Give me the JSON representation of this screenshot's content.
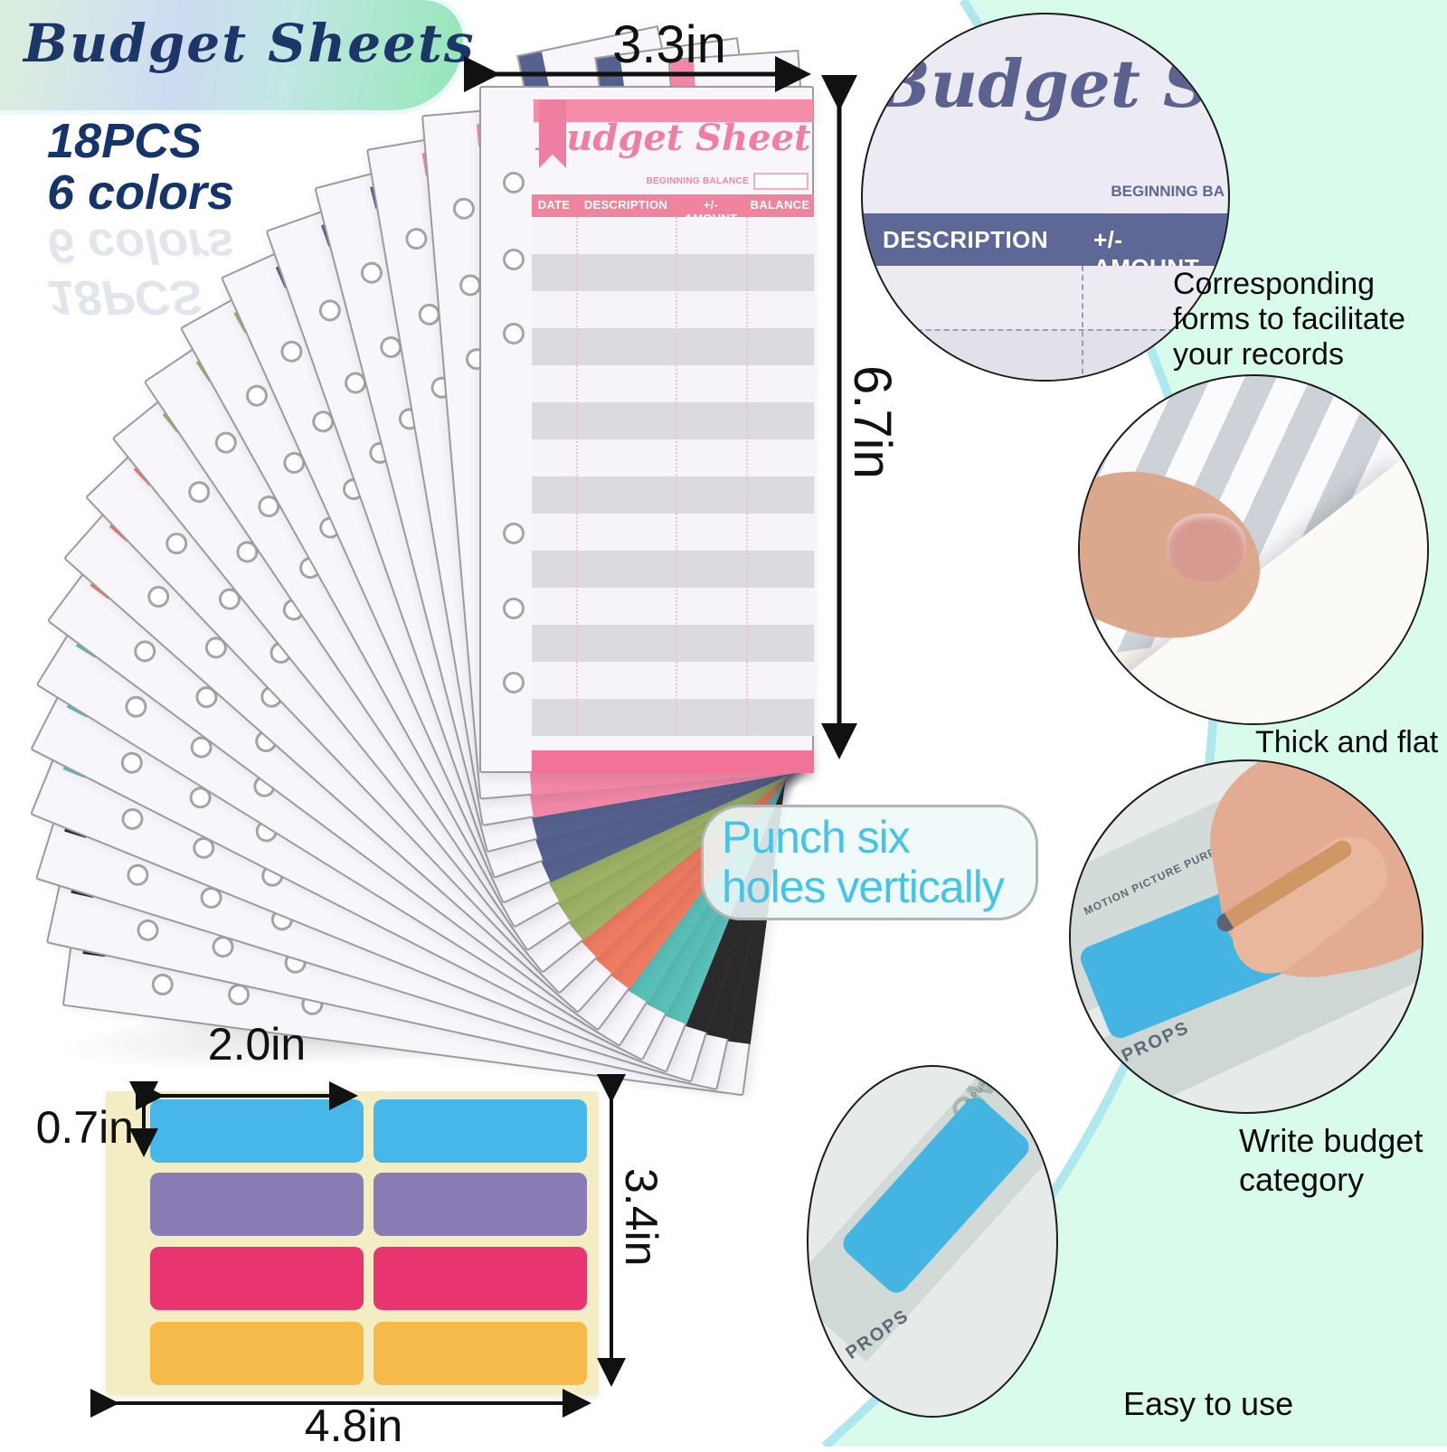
{
  "banner": {
    "title": "Budget Sheets"
  },
  "subtitle": {
    "count": "18PCS",
    "colors_label": "6 colors"
  },
  "front_sheet": {
    "title": "Budget Sheet",
    "beginning_balance": "BEGINNING BALANCE",
    "columns": [
      "DATE",
      "DESCRIPTION",
      "+/- AMOUNT",
      "BALANCE"
    ]
  },
  "fan": {
    "piece_count": 18,
    "angle_step_deg": -4.85,
    "color_names": [
      "pink",
      "navy",
      "green",
      "coral",
      "teal",
      "black"
    ],
    "colors": [
      "#f286a6",
      "#55618e",
      "#9db264",
      "#ef7b60",
      "#58c0b8",
      "#2d2a2b"
    ],
    "date_label": "DATE"
  },
  "dimensions": {
    "sheet_width": "3.3in",
    "sheet_height": "6.7in",
    "sticker_width": "2.0in",
    "sticker_height": "0.7in",
    "sticker_sheet_height": "3.4in",
    "sticker_sheet_width": "4.8in"
  },
  "zoom_circle": {
    "title_partial": "Budget Sh",
    "beginning_partial": "BEGINNING BA",
    "description_col": "DESCRIPTION",
    "amount_col": "+/- AMOUNT"
  },
  "callouts": {
    "punch_line1": "Punch six",
    "punch_line2": "holes vertically",
    "corresponding": "Corresponding forms to facilitate your records",
    "thick": "Thick and flat",
    "write_line1": "Write budget",
    "write_line2": "category",
    "easy": "Easy to use"
  },
  "money": {
    "in_props": "IN PROPS",
    "motion": "MOTION PICTURE PURPOSES",
    "one_partial": "ONE"
  },
  "sticker_sheet": {
    "colors": [
      "#47b7e9",
      "#8a7cb5",
      "#e8356f",
      "#f5ba4a"
    ],
    "color_names": [
      "blue",
      "purple",
      "magenta",
      "yellow"
    ]
  },
  "theme": {
    "mint_background": "#d9fbec",
    "swoosh_line": "#aee8ee",
    "navy_text": "#1c3667",
    "punch_text": "#45c4e6"
  }
}
